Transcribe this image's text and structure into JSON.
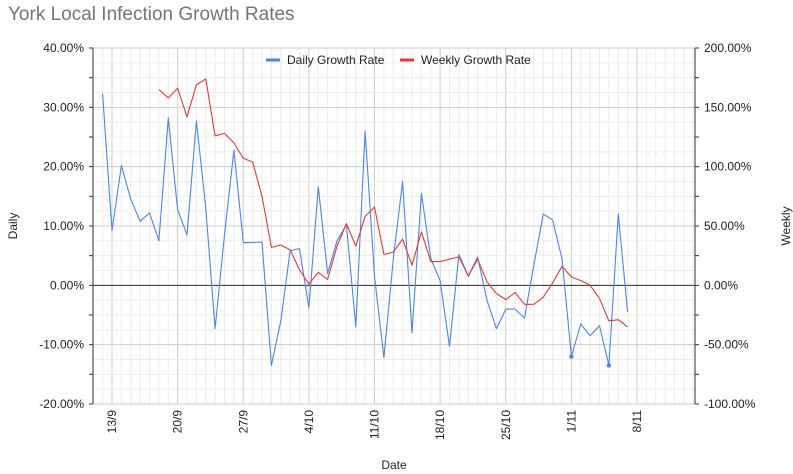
{
  "chart_data": {
    "type": "line",
    "title": "York Local Infection Growth Rates",
    "xlabel": "Date",
    "ylabel_left": "Daily",
    "ylabel_right": "Weekly",
    "x_tick_labels": [
      "13/9",
      "20/9",
      "27/9",
      "4/10",
      "11/10",
      "18/10",
      "25/10",
      "1/11",
      "8/11"
    ],
    "y_left_ticks": [
      "40.00%",
      "30.00%",
      "20.00%",
      "10.00%",
      "0.00%",
      "-10.00%",
      "-20.00%"
    ],
    "y_right_ticks": [
      "200.00%",
      "150.00%",
      "100.00%",
      "50.00%",
      "0.00%",
      "-50.00%",
      "-100.00%"
    ],
    "ylim_left": [
      -20,
      40
    ],
    "ylim_right": [
      -100,
      200
    ],
    "x_first_date": "2020-09-13",
    "x_last_date": "2020-11-08",
    "legend_position": "top",
    "grid": true,
    "series": [
      {
        "name": "Daily Growth Rate",
        "axis": "left",
        "color": "#4a86e8",
        "points": [
          [
            "2020-09-12",
            32.3
          ],
          [
            "2020-09-13",
            9.2
          ],
          [
            "2020-09-14",
            20.2
          ],
          [
            "2020-09-15",
            14.5
          ],
          [
            "2020-09-16",
            10.8
          ],
          [
            "2020-09-17",
            12.2
          ],
          [
            "2020-09-18",
            7.5
          ],
          [
            "2020-09-19",
            28.2
          ],
          [
            "2020-09-20",
            12.8
          ],
          [
            "2020-09-21",
            8.5
          ],
          [
            "2020-09-22",
            27.7
          ],
          [
            "2020-09-23",
            13.0
          ],
          [
            "2020-09-24",
            -7.3
          ],
          [
            "2020-09-25",
            8.5
          ],
          [
            "2020-09-26",
            22.8
          ],
          [
            "2020-09-27",
            7.2
          ],
          [
            "2020-09-28",
            7.2
          ],
          [
            "2020-09-29",
            7.3
          ],
          [
            "2020-09-30",
            -13.5
          ],
          [
            "2020-10-01",
            -6.0
          ],
          [
            "2020-10-02",
            5.8
          ],
          [
            "2020-10-03",
            6.2
          ],
          [
            "2020-10-04",
            -3.8
          ],
          [
            "2020-10-05",
            16.6
          ],
          [
            "2020-10-06",
            2.0
          ],
          [
            "2020-10-07",
            7.5
          ],
          [
            "2020-10-08",
            10.2
          ],
          [
            "2020-10-09",
            -7.0
          ],
          [
            "2020-10-10",
            26.0
          ],
          [
            "2020-10-11",
            1.5
          ],
          [
            "2020-10-12",
            -12.2
          ],
          [
            "2020-10-13",
            4.5
          ],
          [
            "2020-10-14",
            17.5
          ],
          [
            "2020-10-15",
            -8.0
          ],
          [
            "2020-10-16",
            15.5
          ],
          [
            "2020-10-17",
            4.5
          ],
          [
            "2020-10-18",
            0.8
          ],
          [
            "2020-10-19",
            -10.3
          ],
          [
            "2020-10-20",
            5.2
          ],
          [
            "2020-10-21",
            1.5
          ],
          [
            "2020-10-22",
            4.8
          ],
          [
            "2020-10-23",
            -2.5
          ],
          [
            "2020-10-24",
            -7.3
          ],
          [
            "2020-10-25",
            -4.0
          ],
          [
            "2020-10-26",
            -4.0
          ],
          [
            "2020-10-27",
            -5.5
          ],
          [
            "2020-10-28",
            3.5
          ],
          [
            "2020-10-29",
            12.0
          ],
          [
            "2020-10-30",
            11.0
          ],
          [
            "2020-10-31",
            4.5
          ],
          [
            "2020-11-01",
            -12.0
          ],
          [
            "2020-11-02",
            -6.5
          ],
          [
            "2020-11-03",
            -8.5
          ],
          [
            "2020-11-04",
            -6.8
          ],
          [
            "2020-11-05",
            -13.5
          ],
          [
            "2020-11-06",
            12.0
          ],
          [
            "2020-11-07",
            -4.5
          ]
        ],
        "marked_points": [
          "2020-11-01",
          "2020-11-05"
        ]
      },
      {
        "name": "Weekly Growth Rate",
        "axis": "right",
        "color": "#e53935",
        "points": [
          [
            "2020-09-18",
            165
          ],
          [
            "2020-09-19",
            158
          ],
          [
            "2020-09-20",
            166
          ],
          [
            "2020-09-21",
            142
          ],
          [
            "2020-09-22",
            169
          ],
          [
            "2020-09-23",
            174
          ],
          [
            "2020-09-24",
            126
          ],
          [
            "2020-09-25",
            128
          ],
          [
            "2020-09-26",
            120
          ],
          [
            "2020-09-27",
            107
          ],
          [
            "2020-09-28",
            104
          ],
          [
            "2020-09-29",
            75
          ],
          [
            "2020-09-30",
            32
          ],
          [
            "2020-10-01",
            34
          ],
          [
            "2020-10-02",
            30
          ],
          [
            "2020-10-03",
            13
          ],
          [
            "2020-10-04",
            1
          ],
          [
            "2020-10-05",
            11
          ],
          [
            "2020-10-06",
            5
          ],
          [
            "2020-10-07",
            33
          ],
          [
            "2020-10-08",
            52
          ],
          [
            "2020-10-09",
            33
          ],
          [
            "2020-10-10",
            58
          ],
          [
            "2020-10-11",
            66
          ],
          [
            "2020-10-12",
            26
          ],
          [
            "2020-10-13",
            28
          ],
          [
            "2020-10-14",
            39
          ],
          [
            "2020-10-15",
            17
          ],
          [
            "2020-10-16",
            45
          ],
          [
            "2020-10-17",
            20
          ],
          [
            "2020-10-18",
            20
          ],
          [
            "2020-10-19",
            22
          ],
          [
            "2020-10-20",
            24
          ],
          [
            "2020-10-21",
            8
          ],
          [
            "2020-10-22",
            22
          ],
          [
            "2020-10-23",
            3
          ],
          [
            "2020-10-24",
            -7
          ],
          [
            "2020-10-25",
            -12
          ],
          [
            "2020-10-26",
            -6
          ],
          [
            "2020-10-27",
            -16
          ],
          [
            "2020-10-28",
            -16
          ],
          [
            "2020-10-29",
            -10
          ],
          [
            "2020-10-30",
            2
          ],
          [
            "2020-10-31",
            16
          ],
          [
            "2020-11-01",
            7
          ],
          [
            "2020-11-02",
            4
          ],
          [
            "2020-11-03",
            0
          ],
          [
            "2020-11-04",
            -11
          ],
          [
            "2020-11-05",
            -30
          ],
          [
            "2020-11-06",
            -29
          ],
          [
            "2020-11-07",
            -35
          ]
        ],
        "marked_points": []
      }
    ]
  }
}
